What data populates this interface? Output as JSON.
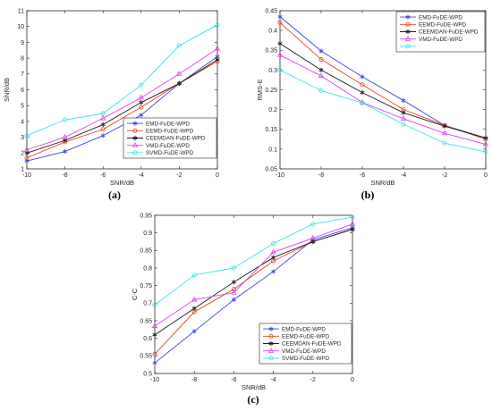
{
  "colors": {
    "EMD": "#3b45e0",
    "EEMD": "#e0451f",
    "CEEMDAN": "#1a1a1a",
    "VMD": "#e040e8",
    "SVMD": "#35e0e8"
  },
  "panels": [
    {
      "label": "(a)",
      "chart_data": {
        "type": "line",
        "xlabel": "SNR/dB",
        "ylabel": "SNR/dB",
        "x": [
          -10,
          -8,
          -6,
          -4,
          -2,
          0
        ],
        "xlim": [
          -10,
          0
        ],
        "ylim": [
          1,
          11
        ],
        "xticks": [
          -10,
          -8,
          -6,
          -4,
          -2,
          0
        ],
        "yticks": [
          1,
          2,
          3,
          4,
          5,
          6,
          7,
          8,
          9,
          10,
          11
        ],
        "legend_position": "bottom-right",
        "series": [
          {
            "name": "EMD-FuDE-WPD",
            "color_key": "EMD",
            "marker": "star",
            "values": [
              1.5,
              2.1,
              3.1,
              4.4,
              6.4,
              8.1
            ]
          },
          {
            "name": "EEMD-FuDE-WPD",
            "color_key": "EEMD",
            "marker": "circle",
            "values": [
              1.7,
              2.7,
              3.5,
              4.9,
              6.4,
              7.8
            ]
          },
          {
            "name": "CEEMDAN-FuDE-WPD",
            "color_key": "CEEMDAN",
            "marker": "star",
            "values": [
              2.0,
              2.8,
              3.8,
              5.2,
              6.4,
              7.9
            ]
          },
          {
            "name": "VMD-FuDE-WPD",
            "color_key": "VMD",
            "marker": "triangle",
            "values": [
              2.2,
              3.0,
              4.2,
              5.5,
              7.0,
              8.6
            ]
          },
          {
            "name": "SVMD-FuDE-WPD",
            "color_key": "SVMD",
            "marker": "circle",
            "values": [
              3.1,
              4.1,
              4.5,
              6.3,
              8.8,
              10.1
            ]
          }
        ]
      }
    },
    {
      "label": "(b)",
      "chart_data": {
        "type": "line",
        "xlabel": "SNR/dB",
        "ylabel": "RMS-E",
        "x": [
          -10,
          -8,
          -6,
          -4,
          -2,
          0
        ],
        "xlim": [
          -10,
          0
        ],
        "ylim": [
          0.05,
          0.45
        ],
        "xticks": [
          -10,
          -8,
          -6,
          -4,
          -2,
          0
        ],
        "yticks": [
          0.05,
          0.1,
          0.15,
          0.2,
          0.25,
          0.3,
          0.35,
          0.4,
          0.45
        ],
        "legend_position": "top-right",
        "series": [
          {
            "name": "EMD-FuDE-WPD",
            "color_key": "EMD",
            "marker": "star",
            "values": [
              0.435,
              0.348,
              0.283,
              0.223,
              0.16,
              0.128
            ]
          },
          {
            "name": "EEMD-FuDE-WPD",
            "color_key": "EEMD",
            "marker": "circle",
            "values": [
              0.42,
              0.327,
              0.263,
              0.2,
              0.16,
              0.125
            ]
          },
          {
            "name": "CEEMDAN-FuDE-WPD",
            "color_key": "CEEMDAN",
            "marker": "star",
            "values": [
              0.367,
              0.3,
              0.243,
              0.192,
              0.158,
              0.128
            ]
          },
          {
            "name": "VMD-FuDE-WPD",
            "color_key": "VMD",
            "marker": "triangle",
            "values": [
              0.338,
              0.285,
              0.218,
              0.177,
              0.14,
              0.112
            ]
          },
          {
            "name": "",
            "color_key": "SVMD",
            "marker": "circle",
            "values": [
              0.3,
              0.248,
              0.217,
              0.163,
              0.115,
              0.093
            ]
          }
        ]
      }
    },
    {
      "label": "(c)",
      "chart_data": {
        "type": "line",
        "xlabel": "SNR/dB",
        "ylabel": "C-C",
        "x": [
          -10,
          -8,
          -6,
          -4,
          -2,
          0
        ],
        "xlim": [
          -10,
          0
        ],
        "ylim": [
          0.5,
          0.95
        ],
        "xticks": [
          -10,
          -8,
          -6,
          -4,
          -2,
          0
        ],
        "yticks": [
          0.5,
          0.55,
          0.6,
          0.65,
          0.7,
          0.75,
          0.8,
          0.85,
          0.9,
          0.95
        ],
        "legend_position": "bottom-right",
        "series": [
          {
            "name": "EMD-FuDE-WPD",
            "color_key": "EMD",
            "marker": "star",
            "values": [
              0.53,
              0.62,
              0.71,
              0.79,
              0.88,
              0.915
            ]
          },
          {
            "name": "EEMD-FuDE-WPD",
            "color_key": "EEMD",
            "marker": "circle",
            "values": [
              0.555,
              0.675,
              0.74,
              0.82,
              0.875,
              0.91
            ]
          },
          {
            "name": "CEEMDAN-FuDE-WPD",
            "color_key": "CEEMDAN",
            "marker": "star",
            "values": [
              0.61,
              0.685,
              0.76,
              0.83,
              0.875,
              0.91
            ]
          },
          {
            "name": "VMD-FuDE-WPD",
            "color_key": "VMD",
            "marker": "triangle",
            "values": [
              0.635,
              0.71,
              0.73,
              0.845,
              0.885,
              0.925
            ]
          },
          {
            "name": "SVMD-FuDE-WPD",
            "color_key": "SVMD",
            "marker": "circle",
            "values": [
              0.695,
              0.78,
              0.8,
              0.87,
              0.925,
              0.945
            ]
          }
        ]
      }
    }
  ]
}
